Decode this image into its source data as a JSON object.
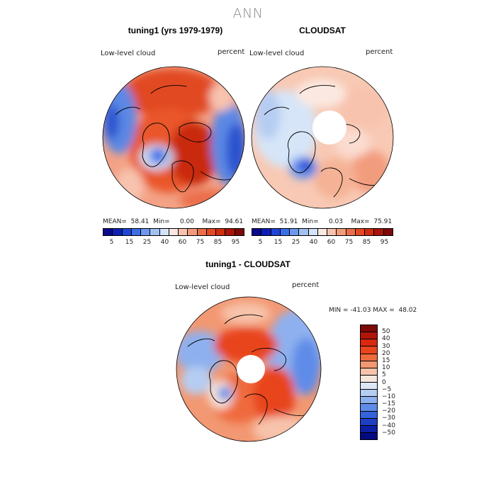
{
  "season": "ANN",
  "panels": [
    {
      "title": "tuning1 (yrs 1979-1979)",
      "variable": "Low-level cloud",
      "units": "percent",
      "mean_label": "MEAN=",
      "mean": "58.41",
      "min_label": "Min=",
      "min": "0.00",
      "max_label": "Max=",
      "max": "94.61"
    },
    {
      "title": "CLOUDSAT",
      "variable": "Low-level cloud",
      "units": "percent",
      "mean_label": "MEAN=",
      "mean": "51.91",
      "min_label": "Min=",
      "min": "0.03",
      "max_label": "Max=",
      "max": "75.91"
    }
  ],
  "diff_panel": {
    "title": "tuning1 - CLOUDSAT",
    "variable": "Low-level cloud",
    "units": "percent",
    "minmax": "MIN = -41.03 MAX =  48.02"
  },
  "colorbar_main": {
    "colors": [
      "#0a0a8c",
      "#0f1fb4",
      "#1f45d6",
      "#3c6fe6",
      "#6e98ee",
      "#a2c0f2",
      "#d3e3f8",
      "#fbe9e1",
      "#f8c3ae",
      "#f29c7e",
      "#eb6e4b",
      "#e34a24",
      "#cf2d0e",
      "#a91508",
      "#7d0a06"
    ],
    "tick_labels": [
      "5",
      "15",
      "25",
      "40",
      "60",
      "75",
      "85",
      "95"
    ]
  },
  "colorbar_diff": {
    "colors": [
      "#7d0a06",
      "#b0150a",
      "#d92810",
      "#e8451d",
      "#ef6b3d",
      "#f29872",
      "#f7c3ab",
      "#f7e6dc",
      "#dce8f6",
      "#b6cdf2",
      "#8eb0ee",
      "#5f8ce8",
      "#3464dc",
      "#1c3fc4",
      "#0c1ea3",
      "#050a82"
    ],
    "tick_labels": [
      "50",
      "40",
      "30",
      "20",
      "15",
      "10",
      "5",
      "0",
      "−5",
      "−10",
      "−15",
      "−20",
      "−30",
      "−40",
      "−50"
    ]
  }
}
